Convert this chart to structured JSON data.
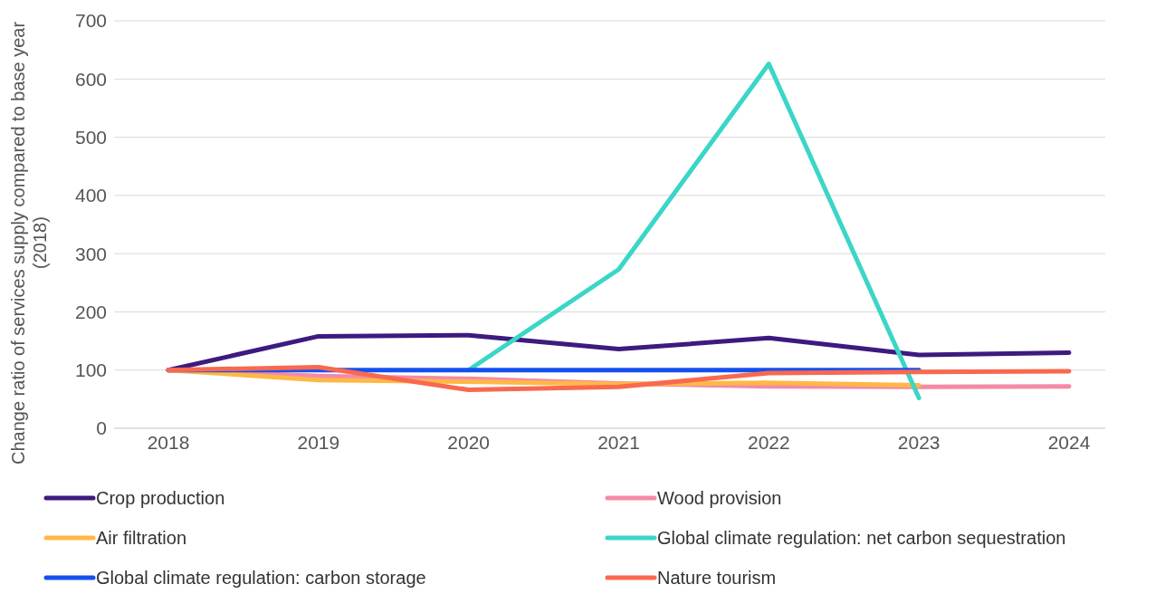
{
  "chart_data": {
    "type": "line",
    "ylabel": "Change ratio of services supply compared to base year (2018)",
    "categories": [
      "2018",
      "2019",
      "2020",
      "2021",
      "2022",
      "2023",
      "2024"
    ],
    "ylim": [
      0,
      700
    ],
    "yticks": [
      0,
      100,
      200,
      300,
      400,
      500,
      600,
      700
    ],
    "grid": "y",
    "legend": "bottom",
    "marker": "none",
    "line_style": "solid",
    "series": [
      {
        "name": "Crop production",
        "color": "#3d1a80",
        "values": [
          100,
          158,
          160,
          136,
          155,
          126,
          130
        ]
      },
      {
        "name": "Wood provision",
        "color": "#f48aa8",
        "values": [
          100,
          90,
          85,
          77,
          72,
          71,
          72
        ]
      },
      {
        "name": "Air filtration",
        "color": "#ffb845",
        "values": [
          100,
          83,
          80,
          76,
          78,
          74,
          null
        ]
      },
      {
        "name": "Global climate regulation: net carbon sequestration",
        "color": "#3ad6c8",
        "values": [
          null,
          null,
          100,
          273,
          626,
          52,
          null
        ]
      },
      {
        "name": "Global climate regulation: carbon storage",
        "color": "#1450f0",
        "values": [
          100,
          100,
          100,
          100,
          100,
          100,
          null
        ]
      },
      {
        "name": "Nature tourism",
        "color": "#f8694f",
        "values": [
          100,
          105,
          66,
          71,
          95,
          97,
          98
        ]
      }
    ]
  }
}
